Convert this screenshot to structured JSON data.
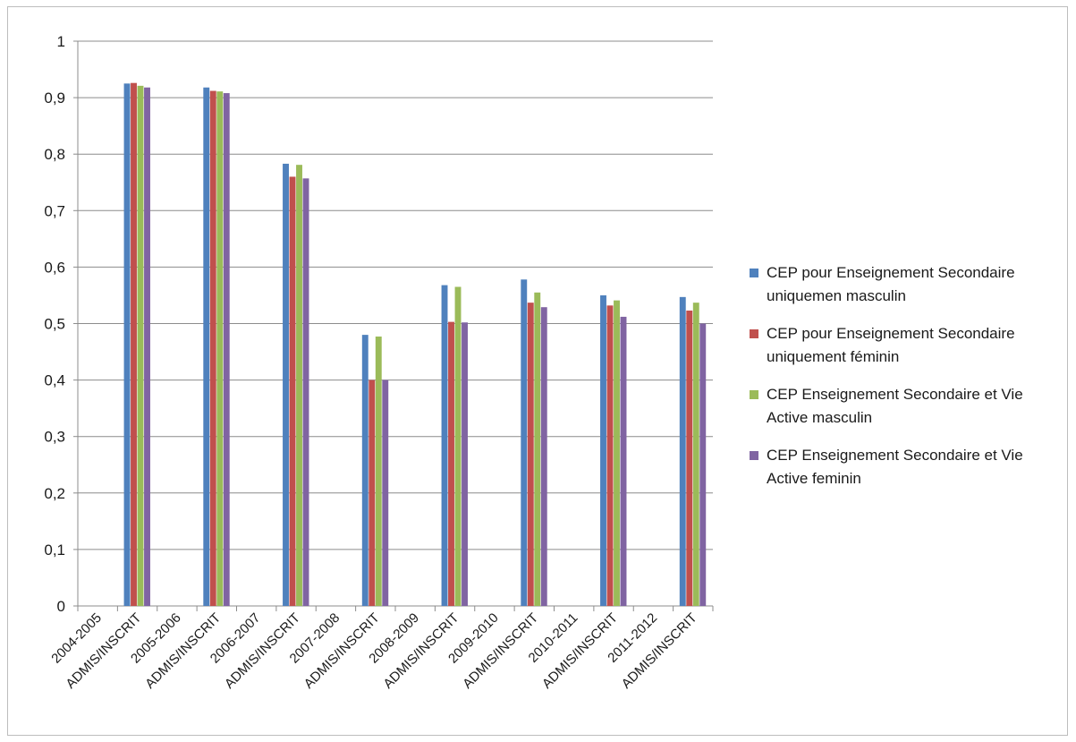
{
  "chart_data": {
    "type": "bar",
    "categories": [
      "2004-2005 ADMIS/INSCRIT",
      "2005-2006 ADMIS/INSCRIT",
      "2006-2007 ADMIS/INSCRIT",
      "2007-2008 ADMIS/INSCRIT",
      "2008-2009 ADMIS/INSCRIT",
      "2009-2010 ADMIS/INSCRIT",
      "2010-2011 ADMIS/INSCRIT",
      "2011-2012 ADMIS/INSCRIT"
    ],
    "tick_label_lines": [
      [
        "2004-2005",
        "ADMIS/INSCRIT"
      ],
      [
        "2005-2006",
        "ADMIS/INSCRIT"
      ],
      [
        "2006-2007",
        "ADMIS/INSCRIT"
      ],
      [
        "2007-2008",
        "ADMIS/INSCRIT"
      ],
      [
        "2008-2009",
        "ADMIS/INSCRIT"
      ],
      [
        "2009-2010",
        "ADMIS/INSCRIT"
      ],
      [
        "2010-2011",
        "ADMIS/INSCRIT"
      ],
      [
        "2011-2012",
        "ADMIS/INSCRIT"
      ]
    ],
    "series": [
      {
        "name": "CEP pour Enseignement Secondaire uniquemen masculin",
        "name_lines": [
          "CEP pour Enseignement Secondaire",
          "uniquemen masculin"
        ],
        "color": "#4f81bd",
        "values": [
          0.925,
          0.918,
          0.783,
          0.48,
          0.568,
          0.578,
          0.55,
          0.547
        ]
      },
      {
        "name": "CEP pour Enseignement Secondaire uniquement féminin",
        "name_lines": [
          "CEP pour Enseignement Secondaire",
          "uniquement féminin"
        ],
        "color": "#c0504d",
        "values": [
          0.926,
          0.912,
          0.76,
          0.4,
          0.503,
          0.537,
          0.532,
          0.523
        ]
      },
      {
        "name": "CEP Enseignement Secondaire et Vie Active masculin",
        "name_lines": [
          "CEP Enseignement Secondaire et Vie",
          "Active masculin"
        ],
        "color": "#9bbb59",
        "values": [
          0.921,
          0.911,
          0.781,
          0.477,
          0.565,
          0.555,
          0.541,
          0.537
        ]
      },
      {
        "name": "CEP Enseignement Secondaire et Vie Active feminin",
        "name_lines": [
          "CEP Enseignement Secondaire et Vie",
          "Active feminin"
        ],
        "color": "#8064a2",
        "values": [
          0.918,
          0.908,
          0.757,
          0.4,
          0.502,
          0.529,
          0.512,
          0.5
        ]
      }
    ],
    "yticks": [
      "0",
      "0,1",
      "0,2",
      "0,3",
      "0,4",
      "0,5",
      "0,6",
      "0,7",
      "0,8",
      "0,9",
      "1"
    ],
    "ylim": [
      0,
      1
    ],
    "grid": true,
    "legend_position": "right",
    "title": "",
    "xlabel": "",
    "ylabel": ""
  }
}
